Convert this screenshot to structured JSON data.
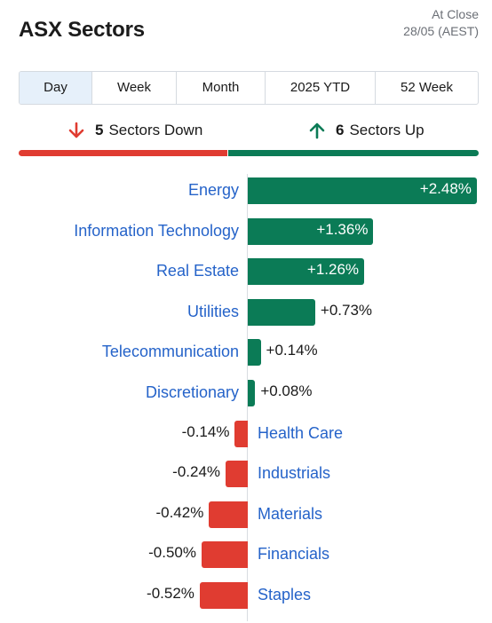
{
  "header": {
    "title": "ASX Sectors",
    "as_of_line1": "At Close",
    "as_of_line2": "28/05 (AEST)"
  },
  "tabs": [
    {
      "label": "Day",
      "active": true
    },
    {
      "label": "Week",
      "active": false
    },
    {
      "label": "Month",
      "active": false
    },
    {
      "label": "2025 YTD",
      "active": false
    },
    {
      "label": "52 Week",
      "active": false
    }
  ],
  "summary": {
    "down_count": "5",
    "down_label": "Sectors Down",
    "up_count": "6",
    "up_label": "Sectors Up",
    "down_icon": "arrow-down-icon",
    "up_icon": "arrow-up-icon",
    "down_color": "#e03c31",
    "up_color": "#0b7b56"
  },
  "colors": {
    "positive": "#0b7b56",
    "negative": "#e03c31",
    "link": "#2563c9",
    "active_tab": "#e6f0fa"
  },
  "sectors": [
    {
      "name": "Energy",
      "change": 2.48,
      "label": "+2.48%"
    },
    {
      "name": "Information Technology",
      "change": 1.36,
      "label": "+1.36%"
    },
    {
      "name": "Real Estate",
      "change": 1.26,
      "label": "+1.26%"
    },
    {
      "name": "Utilities",
      "change": 0.73,
      "label": "+0.73%"
    },
    {
      "name": "Telecommunication",
      "change": 0.14,
      "label": "+0.14%"
    },
    {
      "name": "Discretionary",
      "change": 0.08,
      "label": "+0.08%"
    },
    {
      "name": "Health Care",
      "change": -0.14,
      "label": "-0.14%"
    },
    {
      "name": "Industrials",
      "change": -0.24,
      "label": "-0.24%"
    },
    {
      "name": "Materials",
      "change": -0.42,
      "label": "-0.42%"
    },
    {
      "name": "Financials",
      "change": -0.5,
      "label": "-0.50%"
    },
    {
      "name": "Staples",
      "change": -0.52,
      "label": "-0.52%"
    }
  ]
}
